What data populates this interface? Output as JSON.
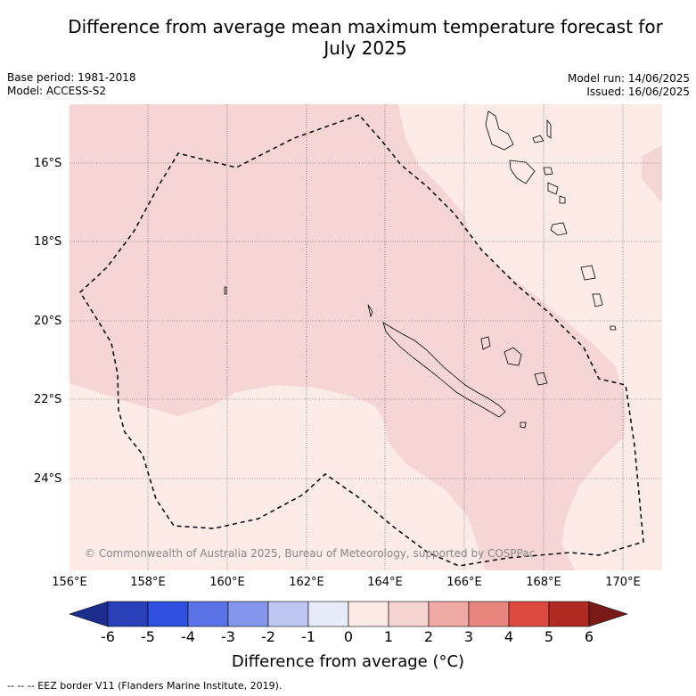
{
  "title_line1": "Difference from average mean maximum temperature forecast for",
  "title_line2": "July 2025",
  "meta_left": [
    "Base period: 1981-2018",
    "Model: ACCESS-S2"
  ],
  "meta_right": [
    "Model run: 14/06/2025",
    "Issued: 16/06/2025"
  ],
  "lat_labels": [
    "16°S",
    "18°S",
    "20°S",
    "22°S",
    "24°S"
  ],
  "lon_labels": [
    "156°E",
    "158°E",
    "160°E",
    "162°E",
    "164°E",
    "166°E",
    "168°E",
    "170°E"
  ],
  "copyright": "© Commonwealth of Australia 2025, Bureau of Meteorology, supported by COSPPac",
  "colorbar": {
    "ticks": [
      "-6",
      "-5",
      "-4",
      "-3",
      "-2",
      "-1",
      "0",
      "1",
      "2",
      "3",
      "4",
      "5",
      "6"
    ],
    "colors": [
      "#1c2e8c",
      "#2a40b8",
      "#3050e0",
      "#5a72e6",
      "#8496ec",
      "#bec6f2",
      "#e8ecfa",
      "#fdebe8",
      "#f5d3d1",
      "#f0aaa6",
      "#e8857f",
      "#dc4a40",
      "#b02a22",
      "#7a1a16"
    ],
    "label": "Difference from average (°C)"
  },
  "footnote": "-- -- -- EEZ border V11 (Flanders Marine Institute, 2019).",
  "map": {
    "bg_color": "#fdebe8",
    "warm_color": "#f5d6d4"
  }
}
